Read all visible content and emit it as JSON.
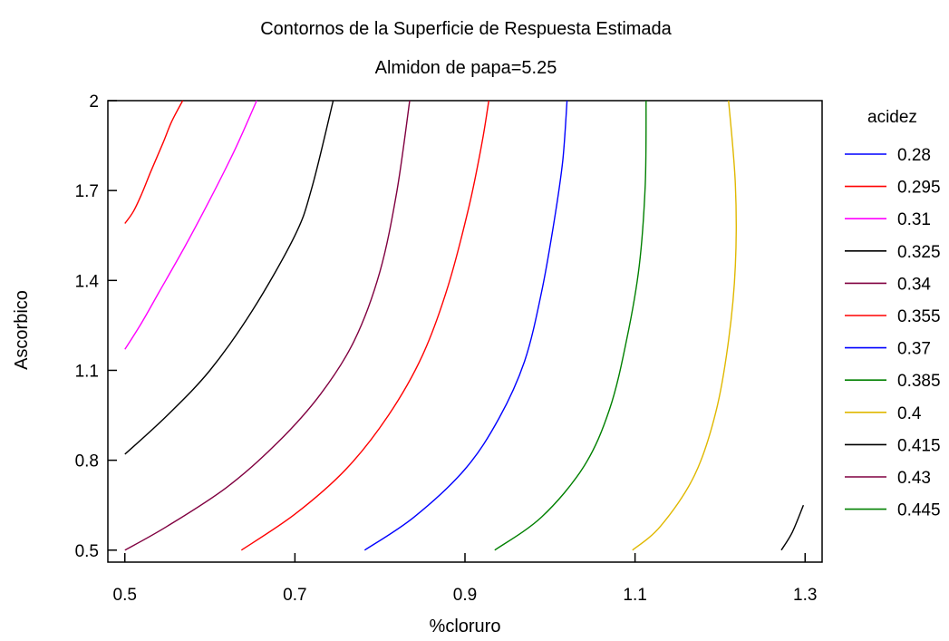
{
  "chart_data": {
    "type": "contour",
    "title": "Contornos de la Superficie de Respuesta Estimada",
    "subtitle": "Almidon de papa=5.25",
    "xlabel": "%cloruro",
    "ylabel": "Ascorbico",
    "xlim": [
      0.48,
      1.32
    ],
    "ylim": [
      0.46,
      2.0
    ],
    "xticks": [
      0.5,
      0.7,
      0.9,
      1.1,
      1.3
    ],
    "yticks": [
      0.5,
      0.8,
      1.1,
      1.4,
      1.7,
      2
    ],
    "xtick_labels": [
      "0.5",
      "0.7",
      "0.9",
      "1.1",
      "1.3"
    ],
    "ytick_labels": [
      "0.5",
      "0.8",
      "1.1",
      "1.4",
      "1.7",
      "2"
    ],
    "legend_title": "acidez",
    "legend_position": "right",
    "legend": [
      {
        "label": "0.28",
        "color": "#0000ff"
      },
      {
        "label": "0.295",
        "color": "#ff0000"
      },
      {
        "label": "0.31",
        "color": "#ff00ff"
      },
      {
        "label": "0.325",
        "color": "#000000"
      },
      {
        "label": "0.34",
        "color": "#800040"
      },
      {
        "label": "0.355",
        "color": "#ff0000"
      },
      {
        "label": "0.37",
        "color": "#0000ff"
      },
      {
        "label": "0.385",
        "color": "#008000"
      },
      {
        "label": "0.4",
        "color": "#e0b800"
      },
      {
        "label": "0.415",
        "color": "#000000"
      },
      {
        "label": "0.43",
        "color": "#800040"
      },
      {
        "label": "0.445",
        "color": "#008000"
      }
    ],
    "contours": [
      {
        "level": 0.295,
        "color": "#ff0000",
        "points": [
          [
            0.5,
            1.59
          ],
          [
            0.51,
            1.63
          ],
          [
            0.52,
            1.69
          ],
          [
            0.53,
            1.76
          ],
          [
            0.545,
            1.86
          ],
          [
            0.555,
            1.93
          ],
          [
            0.568,
            2.0
          ]
        ]
      },
      {
        "level": 0.31,
        "color": "#ff00ff",
        "points": [
          [
            0.5,
            1.17
          ],
          [
            0.52,
            1.26
          ],
          [
            0.54,
            1.36
          ],
          [
            0.57,
            1.51
          ],
          [
            0.6,
            1.67
          ],
          [
            0.63,
            1.84
          ],
          [
            0.655,
            2.0
          ]
        ]
      },
      {
        "level": 0.325,
        "color": "#000000",
        "points": [
          [
            0.5,
            0.82
          ],
          [
            0.55,
            0.95
          ],
          [
            0.6,
            1.1
          ],
          [
            0.65,
            1.3
          ],
          [
            0.7,
            1.55
          ],
          [
            0.72,
            1.71
          ],
          [
            0.745,
            2.0
          ]
        ]
      },
      {
        "level": 0.34,
        "color": "#800040",
        "points": [
          [
            0.5,
            0.5
          ],
          [
            0.55,
            0.58
          ],
          [
            0.62,
            0.71
          ],
          [
            0.68,
            0.86
          ],
          [
            0.73,
            1.02
          ],
          [
            0.77,
            1.2
          ],
          [
            0.8,
            1.43
          ],
          [
            0.82,
            1.7
          ],
          [
            0.835,
            2.0
          ]
        ]
      },
      {
        "level": 0.355,
        "color": "#ff0000",
        "points": [
          [
            0.637,
            0.5
          ],
          [
            0.7,
            0.62
          ],
          [
            0.76,
            0.77
          ],
          [
            0.81,
            0.95
          ],
          [
            0.85,
            1.15
          ],
          [
            0.88,
            1.38
          ],
          [
            0.905,
            1.65
          ],
          [
            0.92,
            1.86
          ],
          [
            0.928,
            2.0
          ]
        ]
      },
      {
        "level": 0.37,
        "color": "#0000ff",
        "points": [
          [
            0.782,
            0.5
          ],
          [
            0.84,
            0.61
          ],
          [
            0.9,
            0.77
          ],
          [
            0.94,
            0.94
          ],
          [
            0.97,
            1.13
          ],
          [
            0.99,
            1.36
          ],
          [
            1.005,
            1.6
          ],
          [
            1.015,
            1.8
          ],
          [
            1.02,
            2.0
          ]
        ]
      },
      {
        "level": 0.385,
        "color": "#008000",
        "points": [
          [
            0.935,
            0.5
          ],
          [
            0.99,
            0.61
          ],
          [
            1.04,
            0.78
          ],
          [
            1.07,
            0.97
          ],
          [
            1.09,
            1.2
          ],
          [
            1.105,
            1.45
          ],
          [
            1.112,
            1.72
          ],
          [
            1.113,
            2.0
          ]
        ]
      },
      {
        "level": 0.4,
        "color": "#e0b800",
        "points": [
          [
            1.097,
            0.5
          ],
          [
            1.13,
            0.58
          ],
          [
            1.17,
            0.75
          ],
          [
            1.195,
            0.96
          ],
          [
            1.21,
            1.2
          ],
          [
            1.218,
            1.45
          ],
          [
            1.218,
            1.72
          ],
          [
            1.21,
            2.0
          ]
        ]
      },
      {
        "level": 0.415,
        "color": "#000000",
        "points": [
          [
            1.272,
            0.5
          ],
          [
            1.285,
            0.56
          ],
          [
            1.298,
            0.65
          ]
        ]
      }
    ]
  }
}
